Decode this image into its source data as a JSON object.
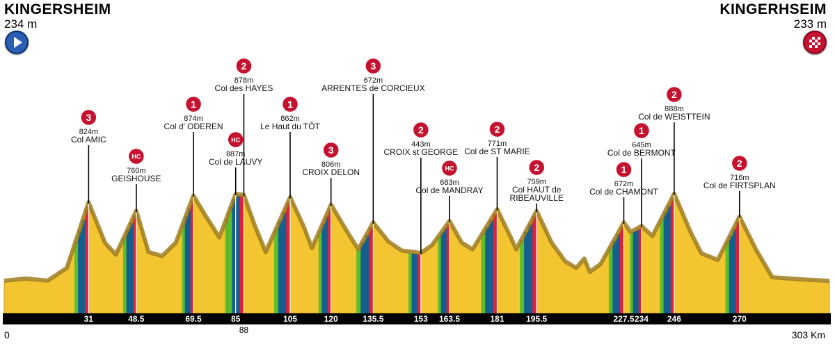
{
  "start": {
    "city": "KINGERSHEIM",
    "altitude": "234 m"
  },
  "finish": {
    "city": "KINGERHSEIM",
    "altitude": "233 m"
  },
  "distance_start_label": "0",
  "distance_end_label": "303 Km",
  "colors": {
    "terrain": "#f2c531",
    "ridge": "#a07c1c",
    "axis": "#000000",
    "green": "#5bbf2a",
    "blue": "#155f8f",
    "red": "#e01f3d",
    "black": "#111111",
    "badge": "#c4122f"
  },
  "chart_data": {
    "type": "area",
    "xlabel": "",
    "ylabel": "",
    "xlim": [
      0,
      303
    ],
    "x_unit": "Km",
    "grid": false,
    "profile": [
      {
        "x": 0,
        "y": 234
      },
      {
        "x": 8,
        "y": 250
      },
      {
        "x": 16,
        "y": 235
      },
      {
        "x": 23,
        "y": 330
      },
      {
        "x": 31,
        "y": 824
      },
      {
        "x": 37,
        "y": 520
      },
      {
        "x": 41,
        "y": 430
      },
      {
        "x": 48.5,
        "y": 760
      },
      {
        "x": 53,
        "y": 450
      },
      {
        "x": 58,
        "y": 420
      },
      {
        "x": 63,
        "y": 520
      },
      {
        "x": 69.5,
        "y": 874
      },
      {
        "x": 74,
        "y": 720
      },
      {
        "x": 79,
        "y": 560
      },
      {
        "x": 85,
        "y": 887
      },
      {
        "x": 88,
        "y": 878
      },
      {
        "x": 92,
        "y": 650
      },
      {
        "x": 96,
        "y": 450
      },
      {
        "x": 105,
        "y": 862
      },
      {
        "x": 110,
        "y": 640
      },
      {
        "x": 113,
        "y": 480
      },
      {
        "x": 120,
        "y": 806
      },
      {
        "x": 126,
        "y": 600
      },
      {
        "x": 130,
        "y": 470
      },
      {
        "x": 135.5,
        "y": 672
      },
      {
        "x": 141,
        "y": 530
      },
      {
        "x": 146,
        "y": 460
      },
      {
        "x": 153,
        "y": 443
      },
      {
        "x": 157,
        "y": 500
      },
      {
        "x": 163.5,
        "y": 683
      },
      {
        "x": 168,
        "y": 520
      },
      {
        "x": 172,
        "y": 470
      },
      {
        "x": 181,
        "y": 771
      },
      {
        "x": 186,
        "y": 560
      },
      {
        "x": 188,
        "y": 470
      },
      {
        "x": 195.5,
        "y": 759
      },
      {
        "x": 201,
        "y": 520
      },
      {
        "x": 206,
        "y": 380
      },
      {
        "x": 210,
        "y": 330
      },
      {
        "x": 213,
        "y": 400
      },
      {
        "x": 215,
        "y": 300
      },
      {
        "x": 219,
        "y": 360
      },
      {
        "x": 227.5,
        "y": 672
      },
      {
        "x": 230,
        "y": 600
      },
      {
        "x": 234,
        "y": 645
      },
      {
        "x": 238,
        "y": 570
      },
      {
        "x": 246,
        "y": 888
      },
      {
        "x": 252,
        "y": 600
      },
      {
        "x": 256,
        "y": 440
      },
      {
        "x": 262,
        "y": 390
      },
      {
        "x": 270,
        "y": 716
      },
      {
        "x": 276,
        "y": 470
      },
      {
        "x": 282,
        "y": 260
      },
      {
        "x": 292,
        "y": 245
      },
      {
        "x": 303,
        "y": 233
      }
    ],
    "distance_ticks": [
      31,
      48.5,
      69.5,
      85,
      88,
      105,
      120,
      135.5,
      153,
      163.5,
      181,
      195.5,
      227.5,
      234,
      246,
      270
    ],
    "tick_labels": [
      "31",
      "48.5",
      "69.5",
      "85",
      "88",
      "105",
      "120",
      "135.5",
      "153",
      "163.5",
      "181",
      "195.5",
      "227.5",
      "234",
      "246",
      "270"
    ],
    "climbs": [
      {
        "km": 31,
        "category": "3",
        "altitude": "824m",
        "name": [
          "Col AMIC"
        ]
      },
      {
        "km": 48.5,
        "category": "HC",
        "altitude": "760m",
        "name": [
          "GEISHOUSE"
        ]
      },
      {
        "km": 69.5,
        "category": "1",
        "altitude": "874m",
        "name": [
          "Col d' ODEREN"
        ]
      },
      {
        "km": 85,
        "category": "HC",
        "altitude": "887m",
        "name": [
          "Col de LAUVY"
        ]
      },
      {
        "km": 88,
        "category": "2",
        "altitude": "878m",
        "name": [
          "Col des HAYES"
        ]
      },
      {
        "km": 105,
        "category": "1",
        "altitude": "862m",
        "name": [
          "Le Haut du TÔT"
        ]
      },
      {
        "km": 120,
        "category": "3",
        "altitude": "806m",
        "name": [
          "CROIX DELON"
        ]
      },
      {
        "km": 135.5,
        "category": "3",
        "altitude": "672m",
        "name": [
          "ARRENTES de CORCIEUX"
        ]
      },
      {
        "km": 153,
        "category": "2",
        "altitude": "443m",
        "name": [
          "CROIX st GEORGE"
        ]
      },
      {
        "km": 163.5,
        "category": "HC",
        "altitude": "683m",
        "name": [
          "Col de MANDRAY"
        ]
      },
      {
        "km": 181,
        "category": "2",
        "altitude": "771m",
        "name": [
          "Col de ST MARIE"
        ]
      },
      {
        "km": 195.5,
        "category": "2",
        "altitude": "759m",
        "name": [
          "Col HAUT de",
          "RIBEAUVILLE"
        ]
      },
      {
        "km": 227.5,
        "category": "1",
        "altitude": "672m",
        "name": [
          "Col de CHAMONT"
        ]
      },
      {
        "km": 234,
        "category": "1",
        "altitude": "645m",
        "name": [
          "Col de BERMONT"
        ]
      },
      {
        "km": 246,
        "category": "2",
        "altitude": "888m",
        "name": [
          "Col de WEISTTEIN"
        ]
      },
      {
        "km": 270,
        "category": "2",
        "altitude": "716m",
        "name": [
          "Col de FIRTSPLAN"
        ]
      }
    ]
  }
}
